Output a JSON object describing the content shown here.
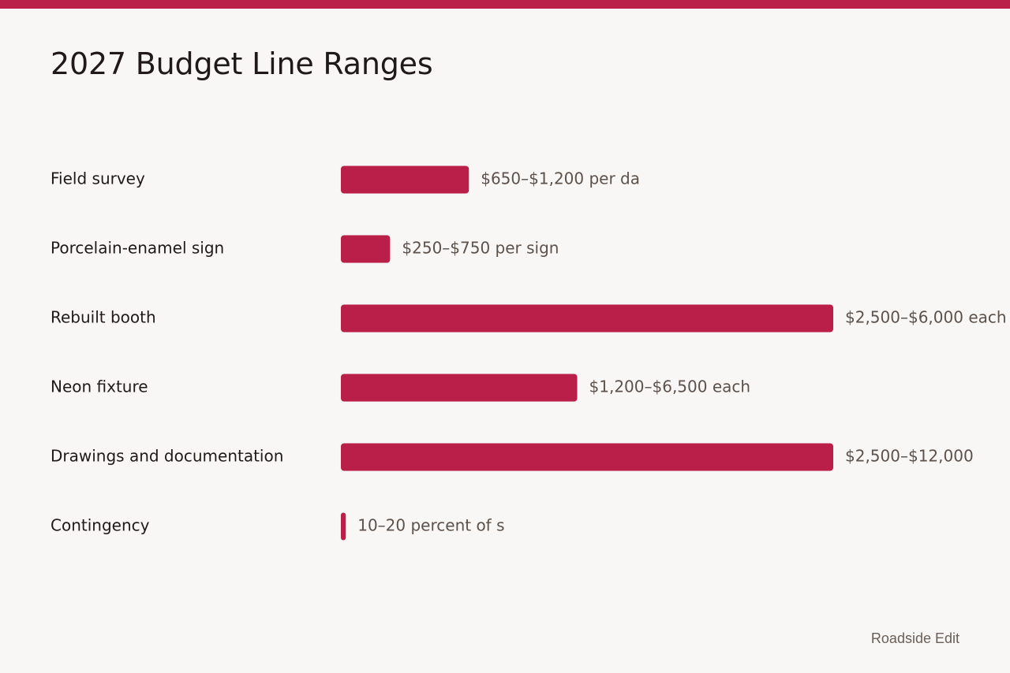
{
  "colors": {
    "accent": "#b91f48",
    "background": "#f9f7f5",
    "label": "#1f1a17",
    "value_label": "#5c514b"
  },
  "footer": {
    "credit": "Roadside Edit"
  },
  "chart_data": {
    "type": "bar",
    "orientation": "horizontal",
    "title": "2027 Budget Line Ranges",
    "xlabel": "",
    "ylabel": "",
    "grid": false,
    "legend": "none",
    "xlim": [
      0,
      4
    ],
    "categories": [
      "Field survey",
      "Porcelain-enamel sign",
      "Rebuilt booth",
      "Neon fixture",
      "Drawings and documentation",
      "Contingency"
    ],
    "values": [
      1.04,
      0.4,
      4.0,
      1.92,
      4.0,
      0.04
    ],
    "data_labels": [
      "$650–$1,200 per da",
      "$250–$750 per sign",
      "$2,500–$6,000 each",
      "$1,200–$6,500 each",
      "$2,500–$12,000",
      "10–20 percent of s"
    ]
  }
}
